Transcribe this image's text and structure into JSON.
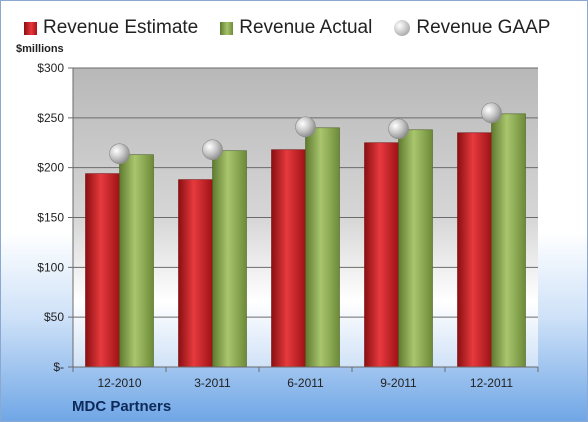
{
  "company": "MDC Partners",
  "chart_data": {
    "type": "bar",
    "categories": [
      "12-2010",
      "3-2011",
      "6-2011",
      "9-2011",
      "12-2011"
    ],
    "series": [
      {
        "name": "Revenue Estimate",
        "kind": "bar",
        "values": [
          194,
          188,
          218,
          225,
          235
        ],
        "color": "#c81e22"
      },
      {
        "name": "Revenue Actual",
        "kind": "bar",
        "values": [
          213,
          217,
          240,
          238,
          254
        ],
        "color": "#8aaa50"
      },
      {
        "name": "Revenue GAAP",
        "kind": "marker",
        "values": [
          214,
          218,
          241,
          239,
          255
        ],
        "color": "#b0b0b0"
      }
    ],
    "ylabel": "$millions",
    "ylim": [
      0,
      300
    ],
    "yticks": [
      0,
      50,
      100,
      150,
      200,
      250,
      300
    ],
    "ytick_labels": [
      "$-",
      "$50",
      "$100",
      "$150",
      "$200",
      "$250",
      "$300"
    ],
    "grid": true,
    "legend": "top"
  }
}
